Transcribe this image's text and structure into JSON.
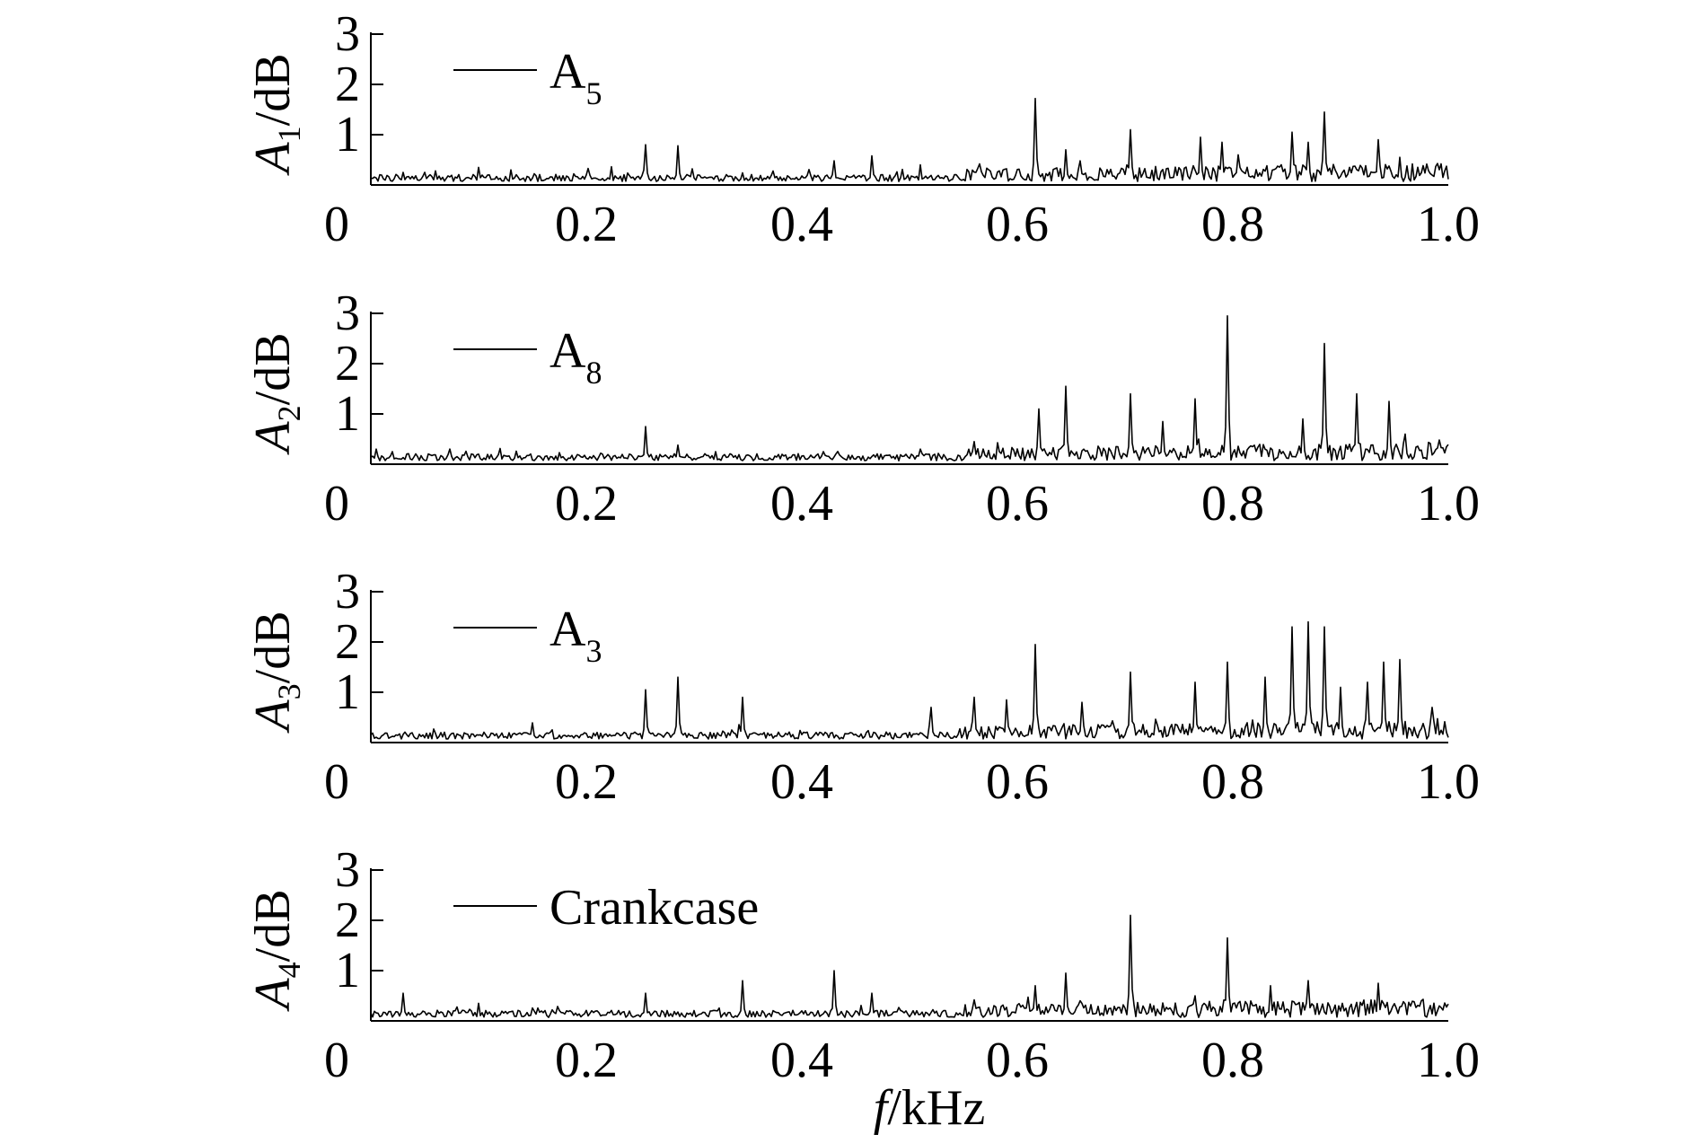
{
  "chart_data": {
    "type": "line",
    "xlabel_italic": "f",
    "xlabel_unit": "/kHz",
    "xlim": [
      0,
      1.0
    ],
    "ylim": [
      0,
      3
    ],
    "x_ticks": [
      "0.2",
      "0.4",
      "0.6",
      "0.8",
      "1.0"
    ],
    "y_ticks": [
      "1",
      "2",
      "3"
    ],
    "zero_label": "0",
    "panels": [
      {
        "ylabel_base": "A",
        "ylabel_sub": "1",
        "ylabel_unit": "/dB",
        "legend_base": "A",
        "legend_sub": "5",
        "peaks": [
          [
            0.03,
            0.25
          ],
          [
            0.06,
            0.28
          ],
          [
            0.1,
            0.35
          ],
          [
            0.13,
            0.3
          ],
          [
            0.2,
            0.2
          ],
          [
            0.255,
            0.8
          ],
          [
            0.285,
            0.78
          ],
          [
            0.43,
            0.48
          ],
          [
            0.465,
            0.58
          ],
          [
            0.51,
            0.4
          ],
          [
            0.565,
            0.42
          ],
          [
            0.617,
            1.72
          ],
          [
            0.645,
            0.7
          ],
          [
            0.705,
            1.1
          ],
          [
            0.77,
            0.95
          ],
          [
            0.79,
            0.85
          ],
          [
            0.805,
            0.6
          ],
          [
            0.855,
            1.05
          ],
          [
            0.87,
            0.85
          ],
          [
            0.885,
            1.45
          ],
          [
            0.935,
            0.9
          ],
          [
            0.955,
            0.55
          ]
        ]
      },
      {
        "ylabel_base": "A",
        "ylabel_sub": "2",
        "ylabel_unit": "/dB",
        "legend_base": "A",
        "legend_sub": "8",
        "peaks": [
          [
            0.005,
            0.3
          ],
          [
            0.02,
            0.25
          ],
          [
            0.1,
            0.2
          ],
          [
            0.255,
            0.75
          ],
          [
            0.285,
            0.38
          ],
          [
            0.32,
            0.25
          ],
          [
            0.42,
            0.25
          ],
          [
            0.51,
            0.3
          ],
          [
            0.56,
            0.45
          ],
          [
            0.62,
            1.1
          ],
          [
            0.645,
            1.55
          ],
          [
            0.705,
            1.4
          ],
          [
            0.735,
            0.85
          ],
          [
            0.765,
            1.3
          ],
          [
            0.795,
            2.95
          ],
          [
            0.865,
            0.9
          ],
          [
            0.885,
            2.4
          ],
          [
            0.915,
            1.4
          ],
          [
            0.945,
            1.25
          ],
          [
            0.96,
            0.6
          ]
        ]
      },
      {
        "ylabel_base": "A",
        "ylabel_sub": "3",
        "ylabel_unit": "/dB",
        "legend_base": "A",
        "legend_sub": "3",
        "peaks": [
          [
            0.255,
            1.05
          ],
          [
            0.285,
            1.3
          ],
          [
            0.345,
            0.9
          ],
          [
            0.52,
            0.7
          ],
          [
            0.56,
            0.9
          ],
          [
            0.59,
            0.85
          ],
          [
            0.617,
            1.95
          ],
          [
            0.66,
            0.8
          ],
          [
            0.705,
            1.4
          ],
          [
            0.765,
            1.2
          ],
          [
            0.795,
            1.6
          ],
          [
            0.83,
            1.3
          ],
          [
            0.855,
            2.3
          ],
          [
            0.87,
            2.4
          ],
          [
            0.885,
            2.3
          ],
          [
            0.9,
            1.1
          ],
          [
            0.925,
            1.2
          ],
          [
            0.94,
            1.6
          ],
          [
            0.955,
            1.65
          ],
          [
            0.985,
            0.7
          ]
        ]
      },
      {
        "ylabel_base": "A",
        "ylabel_sub": "4",
        "ylabel_unit": "/dB",
        "legend_base": "Crankcase",
        "legend_sub": "",
        "peaks": [
          [
            0.03,
            0.55
          ],
          [
            0.1,
            0.35
          ],
          [
            0.255,
            0.55
          ],
          [
            0.345,
            0.8
          ],
          [
            0.43,
            1.0
          ],
          [
            0.465,
            0.55
          ],
          [
            0.56,
            0.42
          ],
          [
            0.617,
            0.7
          ],
          [
            0.645,
            0.95
          ],
          [
            0.705,
            2.1
          ],
          [
            0.765,
            0.5
          ],
          [
            0.795,
            1.65
          ],
          [
            0.835,
            0.7
          ],
          [
            0.87,
            0.8
          ],
          [
            0.935,
            0.75
          ]
        ]
      }
    ]
  }
}
